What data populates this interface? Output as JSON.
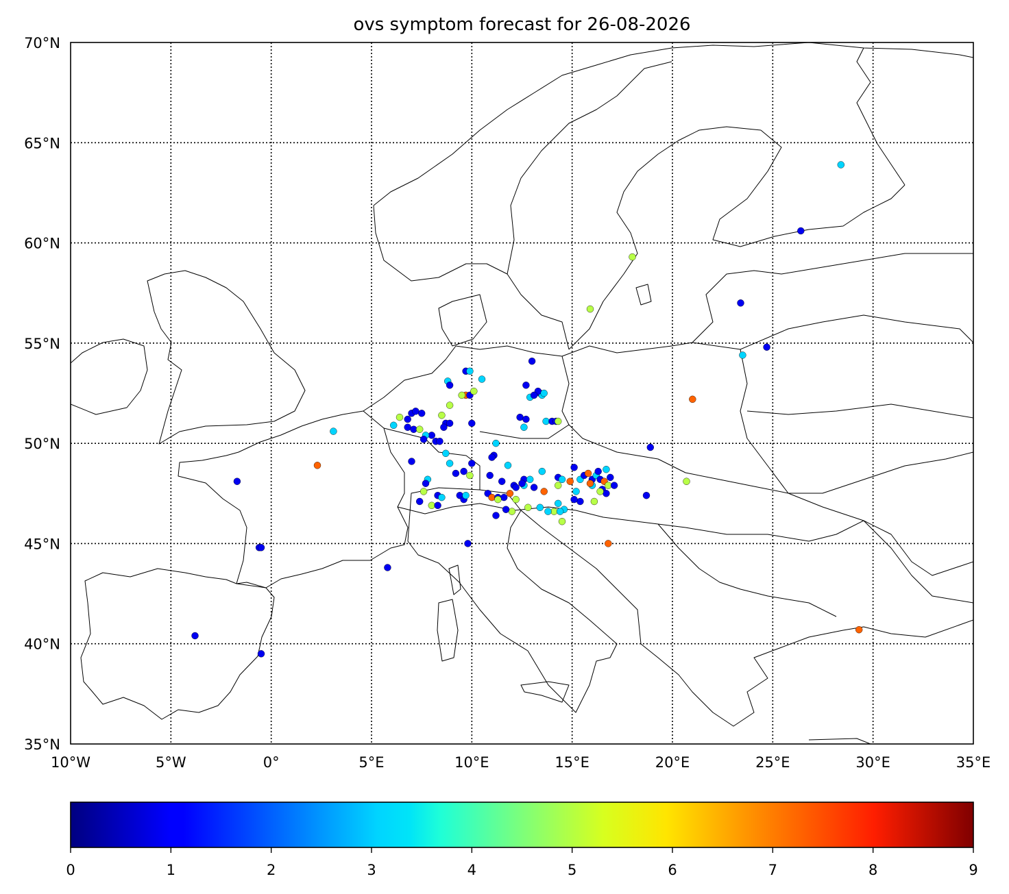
{
  "title": "ovs symptom forecast for 26-08-2026",
  "map": {
    "lon_range": [
      -10,
      35
    ],
    "lat_range": [
      35,
      70
    ],
    "lon_ticks": [
      -10,
      -5,
      0,
      5,
      10,
      15,
      20,
      25,
      30,
      35
    ],
    "lat_ticks": [
      35,
      40,
      45,
      50,
      55,
      60,
      65,
      70
    ],
    "lon_tick_labels": [
      "10°W",
      "5°W",
      "0°",
      "5°E",
      "10°E",
      "15°E",
      "20°E",
      "25°E",
      "30°E",
      "35°E"
    ],
    "lat_tick_labels": [
      "35°N",
      "40°N",
      "45°N",
      "50°N",
      "55°N",
      "60°N",
      "65°N",
      "70°N"
    ],
    "grid": "dotted"
  },
  "colorbar": {
    "min": 0,
    "max": 9,
    "ticks": [
      0,
      1,
      2,
      3,
      4,
      5,
      6,
      7,
      8,
      9
    ],
    "tick_labels": [
      "0",
      "1",
      "2",
      "3",
      "4",
      "5",
      "6",
      "7",
      "8",
      "9"
    ],
    "colormap": "jet",
    "orientation": "horizontal"
  },
  "chart_data": {
    "type": "scatter",
    "x_unit": "longitude",
    "y_unit": "latitude",
    "points": [
      [
        28.4,
        63.9,
        3
      ],
      [
        26.4,
        60.6,
        1
      ],
      [
        18.0,
        59.3,
        5
      ],
      [
        23.4,
        57.0,
        1
      ],
      [
        15.9,
        56.7,
        5
      ],
      [
        24.7,
        54.8,
        1
      ],
      [
        23.5,
        54.4,
        3
      ],
      [
        21.0,
        52.2,
        7
      ],
      [
        18.9,
        49.8,
        1
      ],
      [
        20.7,
        48.1,
        5
      ],
      [
        18.7,
        47.4,
        1
      ],
      [
        3.1,
        50.6,
        3
      ],
      [
        2.3,
        48.9,
        7
      ],
      [
        -1.7,
        48.1,
        1
      ],
      [
        -0.6,
        44.8,
        1
      ],
      [
        -0.5,
        44.8,
        1
      ],
      [
        -3.8,
        40.4,
        1
      ],
      [
        -0.5,
        39.5,
        1
      ],
      [
        5.8,
        43.8,
        1
      ],
      [
        9.8,
        45.0,
        1
      ],
      [
        16.8,
        45.0,
        7
      ],
      [
        29.3,
        40.7,
        7
      ],
      [
        9.7,
        53.6,
        1
      ],
      [
        9.9,
        53.6,
        3
      ],
      [
        10.5,
        53.2,
        3
      ],
      [
        13.0,
        54.1,
        1
      ],
      [
        8.8,
        53.1,
        3
      ],
      [
        8.9,
        52.9,
        1
      ],
      [
        12.7,
        52.9,
        1
      ],
      [
        9.7,
        52.4,
        7
      ],
      [
        9.9,
        52.4,
        1
      ],
      [
        10.1,
        52.6,
        5
      ],
      [
        9.5,
        52.4,
        5
      ],
      [
        13.4,
        52.5,
        1
      ],
      [
        13.5,
        52.4,
        3
      ],
      [
        13.3,
        52.6,
        1
      ],
      [
        12.9,
        52.3,
        3
      ],
      [
        13.1,
        52.4,
        1
      ],
      [
        13.6,
        52.5,
        3
      ],
      [
        8.9,
        51.9,
        5
      ],
      [
        8.5,
        51.4,
        5
      ],
      [
        7.0,
        51.5,
        1
      ],
      [
        7.2,
        51.6,
        1
      ],
      [
        7.5,
        51.5,
        1
      ],
      [
        6.8,
        51.2,
        1
      ],
      [
        6.4,
        51.3,
        5
      ],
      [
        6.1,
        50.9,
        3
      ],
      [
        6.8,
        50.8,
        1
      ],
      [
        7.1,
        50.7,
        1
      ],
      [
        7.4,
        50.7,
        5
      ],
      [
        8.7,
        51.0,
        1
      ],
      [
        8.9,
        51.0,
        1
      ],
      [
        8.6,
        50.8,
        1
      ],
      [
        8.0,
        50.4,
        1
      ],
      [
        7.7,
        50.4,
        3
      ],
      [
        7.6,
        50.2,
        1
      ],
      [
        8.2,
        50.1,
        1
      ],
      [
        8.4,
        50.1,
        1
      ],
      [
        10.0,
        51.0,
        1
      ],
      [
        12.4,
        51.3,
        1
      ],
      [
        12.7,
        51.2,
        1
      ],
      [
        13.7,
        51.1,
        3
      ],
      [
        14.0,
        51.1,
        1
      ],
      [
        14.2,
        51.1,
        1
      ],
      [
        14.3,
        51.1,
        5
      ],
      [
        12.6,
        50.8,
        3
      ],
      [
        11.2,
        50.0,
        3
      ],
      [
        11.1,
        49.4,
        1
      ],
      [
        11.0,
        49.3,
        1
      ],
      [
        8.7,
        49.5,
        3
      ],
      [
        7.0,
        49.1,
        1
      ],
      [
        8.9,
        49.0,
        3
      ],
      [
        9.2,
        48.5,
        1
      ],
      [
        9.6,
        48.6,
        1
      ],
      [
        10.0,
        49.0,
        1
      ],
      [
        11.8,
        48.9,
        3
      ],
      [
        9.9,
        48.4,
        5
      ],
      [
        10.9,
        48.4,
        1
      ],
      [
        13.5,
        48.6,
        3
      ],
      [
        7.8,
        48.2,
        3
      ],
      [
        7.7,
        48.0,
        1
      ],
      [
        7.6,
        47.6,
        5
      ],
      [
        8.3,
        47.4,
        1
      ],
      [
        8.5,
        47.3,
        3
      ],
      [
        9.4,
        47.4,
        1
      ],
      [
        9.6,
        47.2,
        1
      ],
      [
        9.7,
        47.4,
        3
      ],
      [
        10.8,
        47.5,
        1
      ],
      [
        11.0,
        47.3,
        7
      ],
      [
        11.3,
        47.3,
        1
      ],
      [
        11.6,
        47.3,
        1
      ],
      [
        11.9,
        47.5,
        7
      ],
      [
        11.5,
        48.1,
        1
      ],
      [
        12.1,
        47.9,
        1
      ],
      [
        12.2,
        47.8,
        1
      ],
      [
        12.6,
        48.2,
        1
      ],
      [
        12.9,
        48.2,
        3
      ],
      [
        13.1,
        47.8,
        1
      ],
      [
        12.6,
        47.9,
        3
      ],
      [
        12.5,
        48.0,
        1
      ],
      [
        13.6,
        47.6,
        7
      ],
      [
        14.3,
        48.3,
        1
      ],
      [
        14.5,
        48.2,
        3
      ],
      [
        14.3,
        47.9,
        5
      ],
      [
        15.1,
        48.8,
        1
      ],
      [
        14.9,
        48.1,
        7
      ],
      [
        15.4,
        48.2,
        3
      ],
      [
        15.6,
        48.4,
        1
      ],
      [
        15.8,
        48.5,
        7
      ],
      [
        16.0,
        48.2,
        1
      ],
      [
        16.2,
        48.4,
        3
      ],
      [
        16.4,
        48.2,
        1
      ],
      [
        16.6,
        48.1,
        7
      ],
      [
        16.9,
        48.3,
        1
      ],
      [
        16.8,
        47.9,
        5
      ],
      [
        17.1,
        47.9,
        1
      ],
      [
        16.5,
        47.7,
        1
      ],
      [
        16.7,
        47.5,
        1
      ],
      [
        16.0,
        47.9,
        3
      ],
      [
        15.9,
        48.0,
        7
      ],
      [
        16.3,
        48.6,
        1
      ],
      [
        16.7,
        48.7,
        3
      ],
      [
        16.4,
        47.6,
        5
      ],
      [
        15.2,
        47.6,
        3
      ],
      [
        15.4,
        47.1,
        1
      ],
      [
        16.1,
        47.1,
        5
      ],
      [
        15.1,
        47.2,
        1
      ],
      [
        14.3,
        47.0,
        3
      ],
      [
        14.1,
        46.6,
        5
      ],
      [
        13.8,
        46.6,
        3
      ],
      [
        14.6,
        46.7,
        3
      ],
      [
        14.4,
        46.6,
        3
      ],
      [
        13.4,
        46.8,
        3
      ],
      [
        12.8,
        46.8,
        5
      ],
      [
        12.0,
        46.6,
        5
      ],
      [
        11.7,
        46.7,
        1
      ],
      [
        12.2,
        47.2,
        5
      ],
      [
        11.3,
        47.2,
        5
      ],
      [
        11.2,
        46.4,
        1
      ],
      [
        14.5,
        46.1,
        5
      ],
      [
        8.0,
        46.9,
        5
      ],
      [
        8.3,
        46.9,
        1
      ],
      [
        7.4,
        47.1,
        1
      ]
    ]
  }
}
